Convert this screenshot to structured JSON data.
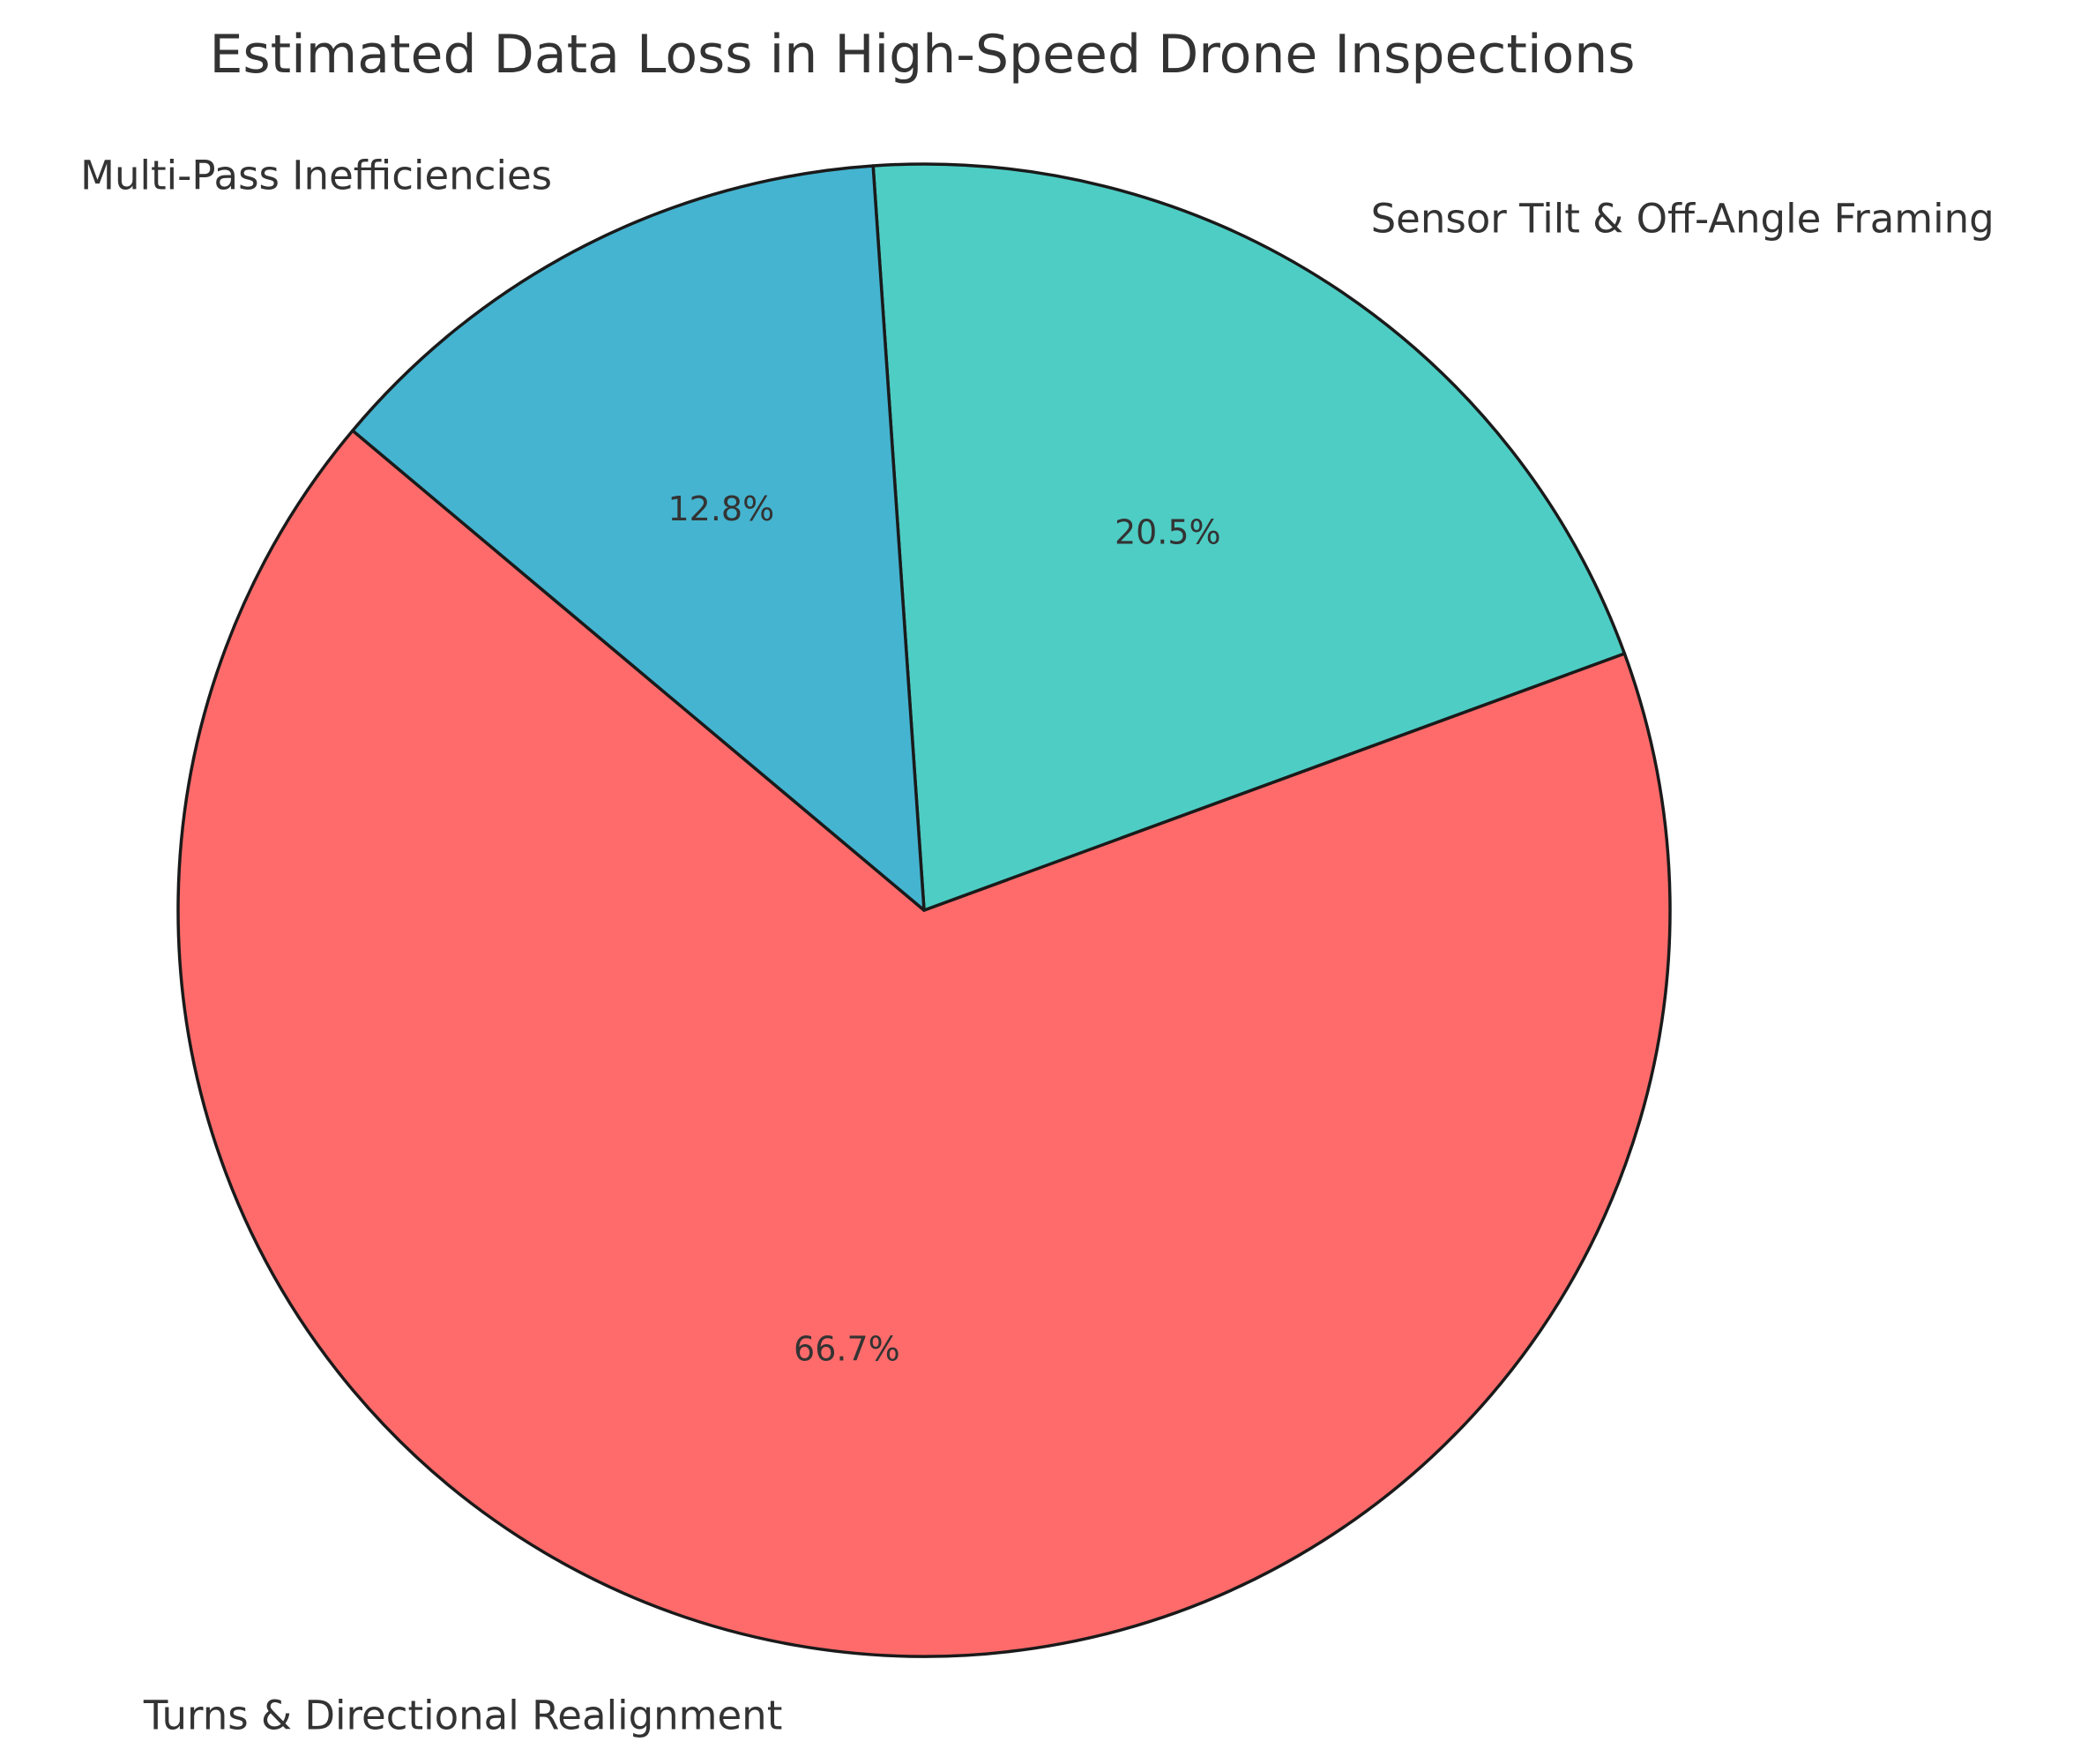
{
  "chart_data": {
    "type": "pie",
    "title": "Estimated Data Loss in High-Speed Drone Inspections",
    "start_angle_deg": 140,
    "direction": "counterclockwise",
    "slices": [
      {
        "label": "Turns & Directional Realignment",
        "value": 66.7,
        "pct_label": "66.7%",
        "color": "#ff6b6b"
      },
      {
        "label": "Sensor Tilt & Off-Angle Framing",
        "value": 20.5,
        "pct_label": "20.5%",
        "color": "#4ecdc4"
      },
      {
        "label": "Multi-Pass Inefficiencies",
        "value": 12.8,
        "pct_label": "12.8%",
        "color": "#45b4d0"
      }
    ]
  }
}
